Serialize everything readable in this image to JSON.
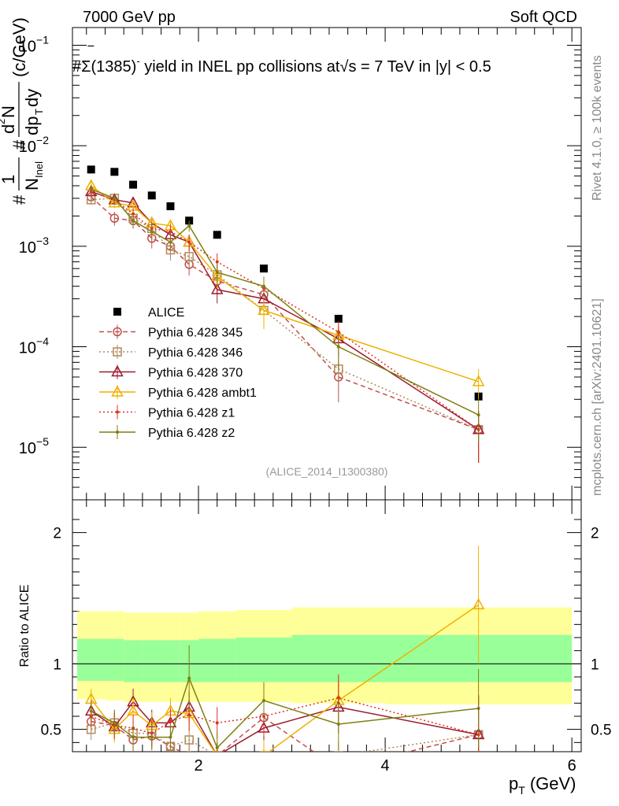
{
  "header": {
    "energy_label": "7000 GeV pp",
    "process_label": "Soft QCD"
  },
  "side_labels": {
    "rivet": "Rivet 4.1.0, ≥ 100k events",
    "mcplots": "mcplots.cern.ch [arXiv:2401.10621]"
  },
  "colors": {
    "alice": "#000000",
    "p345": "#c0504d",
    "p346": "#b08a5a",
    "p370": "#9b1b30",
    "ambt1": "#f0b000",
    "z1": "#e03020",
    "z2": "#7f7f10",
    "band_outer": "#ffff99",
    "band_inner": "#99ff99"
  },
  "chart_data": [
    {
      "type": "scatter",
      "title": "#Σ(1385)⁻ yield in INEL pp collisions at √s = 7 TeV in |y| < 0.5",
      "title_parts": {
        "hash": "#",
        "sigma": "Σ",
        "bar": "‾",
        "mass": "(1385)",
        "charge": "-",
        "mid": "  yield in INEL pp collisions at",
        "sqrt": "√",
        "tail": "s = 7 TeV in |y| < 0.5"
      },
      "ylabel": "#1/N_inel #d²N/dp_T dy (c/GeV)",
      "ylabel_parts": {
        "hash1": "#",
        "one": "1",
        "N": "N",
        "inel": "Inel",
        "hash2": "#",
        "d": "d",
        "sup2": "2",
        "Ntop": "N",
        "dpT": "dp",
        "T": "T",
        "dy": "dy",
        "unit": "(c/GeV)"
      },
      "yscale": "log",
      "ylim": [
        3e-06,
        0.15
      ],
      "xlim": [
        0.65,
        6.1
      ],
      "yticks": [
        {
          "v": 1e-05,
          "base": "10",
          "exp": "−5"
        },
        {
          "v": 0.0001,
          "base": "10",
          "exp": "−4"
        },
        {
          "v": 0.001,
          "base": "10",
          "exp": "−3"
        },
        {
          "v": 0.01,
          "base": "10",
          "exp": "−2"
        },
        {
          "v": 0.1,
          "base": "10",
          "exp": "−1"
        }
      ],
      "annotation": "(ALICE_2014_I1300380)",
      "legend_position": "lower-left",
      "series": [
        {
          "name": "ALICE",
          "key": "alice",
          "marker": "square-filled",
          "line": "none",
          "x": [
            0.85,
            1.1,
            1.3,
            1.5,
            1.7,
            1.9,
            2.2,
            2.7,
            3.5,
            5.0
          ],
          "y": [
            0.0058,
            0.0055,
            0.0041,
            0.0032,
            0.0025,
            0.0018,
            0.0013,
            0.0006,
            0.00019,
            3.2e-05
          ]
        },
        {
          "name": "Pythia 6.428 345",
          "key": "p345",
          "marker": "circle-open",
          "line": "dashed",
          "x": [
            0.85,
            1.1,
            1.3,
            1.5,
            1.7,
            1.9,
            2.2,
            2.7,
            3.5,
            5.0
          ],
          "y": [
            0.0031,
            0.0019,
            0.0018,
            0.0012,
            0.001,
            0.00066,
            0.00045,
            0.00033,
            5e-05,
            1.5e-05
          ],
          "err": [
            0.0003,
            0.0003,
            0.0003,
            0.00025,
            0.0002,
            0.00015,
            0.00012,
            0.0001,
            2.2e-05,
            8e-06
          ]
        },
        {
          "name": "Pythia 6.428 346",
          "key": "p346",
          "marker": "square-open",
          "line": "dotted",
          "x": [
            0.85,
            1.1,
            1.3,
            1.5,
            1.7,
            1.9,
            2.2,
            2.7,
            3.5,
            5.0
          ],
          "y": [
            0.0029,
            0.003,
            0.0019,
            0.0015,
            0.00092,
            0.00079,
            0.00052,
            0.00023,
            6e-05,
            1.5e-05
          ],
          "err": [
            0.0003,
            0.0003,
            0.0003,
            0.00025,
            0.0002,
            0.00015,
            0.00012,
            8e-05,
            2e-05,
            8e-06
          ]
        },
        {
          "name": "Pythia 6.428 370",
          "key": "p370",
          "marker": "triangle-open",
          "line": "solid",
          "x": [
            0.85,
            1.1,
            1.3,
            1.5,
            1.7,
            1.9,
            2.2,
            2.7,
            3.5,
            5.0
          ],
          "y": [
            0.0035,
            0.0029,
            0.0027,
            0.0017,
            0.0013,
            0.0011,
            0.00037,
            0.0003,
            0.00012,
            1.5e-05
          ],
          "err": [
            0.0004,
            0.0003,
            0.0003,
            0.00025,
            0.00025,
            0.0002,
            0.0001,
            0.0001,
            4e-05,
            8e-06
          ]
        },
        {
          "name": "Pythia 6.428 ambt1",
          "key": "ambt1",
          "marker": "triangle-open",
          "line": "solid",
          "x": [
            0.85,
            1.1,
            1.3,
            1.5,
            1.7,
            1.9,
            2.2,
            2.7,
            3.5,
            5.0
          ],
          "y": [
            0.004,
            0.0027,
            0.0025,
            0.0017,
            0.0016,
            0.0011,
            0.0005,
            0.00023,
            0.00013,
            4.5e-05
          ],
          "err": [
            0.0004,
            0.0003,
            0.0003,
            0.00025,
            0.00025,
            0.0002,
            0.00012,
            8e-05,
            4e-05,
            1.5e-05
          ]
        },
        {
          "name": "Pythia 6.428 z1",
          "key": "z1",
          "marker": "dot",
          "line": "dotted",
          "x": [
            0.85,
            1.1,
            1.3,
            1.5,
            1.7,
            1.9,
            2.2,
            2.7,
            3.5,
            5.0
          ],
          "y": [
            0.0035,
            0.0029,
            0.0021,
            0.0015,
            0.0014,
            0.0011,
            0.0007,
            0.00038,
            0.00014,
            1.5e-05
          ],
          "err": [
            0.0004,
            0.0003,
            0.0003,
            0.00025,
            0.00025,
            0.0002,
            0.00015,
            0.0001,
            4e-05,
            8e-06
          ]
        },
        {
          "name": "Pythia 6.428 z2",
          "key": "z2",
          "marker": "dot",
          "line": "solid",
          "x": [
            0.85,
            1.1,
            1.3,
            1.5,
            1.7,
            1.9,
            2.2,
            2.7,
            3.5,
            5.0
          ],
          "y": [
            0.0037,
            0.003,
            0.0018,
            0.0014,
            0.0011,
            0.0016,
            0.00055,
            0.0004,
            0.0001,
            2.1e-05
          ],
          "err": [
            0.0004,
            0.0003,
            0.0003,
            0.00025,
            0.0002,
            0.0002,
            0.00012,
            0.0001,
            4e-05,
            1e-05
          ]
        }
      ]
    },
    {
      "type": "line",
      "ylabel": "Ratio to ALICE",
      "xlabel": "p_T (GeV)",
      "xlabel_parts": {
        "p": "p",
        "T": "T",
        "unit": "(GeV)"
      },
      "ylim": [
        0.33,
        2.25
      ],
      "xlim": [
        0.65,
        6.1
      ],
      "xticks": [
        2,
        4,
        6
      ],
      "yticks": [
        0.5,
        1,
        2
      ],
      "reference_line": 1,
      "bands": {
        "bin_edges": [
          0.7,
          1.0,
          1.2,
          1.4,
          1.6,
          1.8,
          2.0,
          2.4,
          3.0,
          4.0,
          6.0
        ],
        "outer_low": [
          0.73,
          0.72,
          0.71,
          0.71,
          0.71,
          0.71,
          0.71,
          0.71,
          0.7,
          0.69
        ],
        "outer_high": [
          1.4,
          1.4,
          1.39,
          1.39,
          1.39,
          1.39,
          1.4,
          1.41,
          1.43,
          1.43
        ],
        "inner_low": [
          0.87,
          0.87,
          0.86,
          0.86,
          0.86,
          0.86,
          0.86,
          0.86,
          0.86,
          0.86
        ],
        "inner_high": [
          1.19,
          1.19,
          1.18,
          1.18,
          1.18,
          1.18,
          1.19,
          1.2,
          1.22,
          1.22
        ]
      },
      "series": [
        {
          "name": "Pythia 6.428 345",
          "key": "p345",
          "marker": "circle-open",
          "line": "dashed",
          "x": [
            0.85,
            1.1,
            1.3,
            1.5,
            1.7,
            1.9,
            2.2,
            2.7,
            3.5,
            5.0
          ],
          "y": [
            0.56,
            0.53,
            0.42,
            0.45,
            0.37,
            0.3,
            0.3,
            0.59,
            0.2,
            0.46
          ],
          "err": [
            0.08,
            0.1,
            0.1,
            0.1,
            0.1,
            0.1,
            0.1,
            0.15,
            0.1,
            0.3
          ]
        },
        {
          "name": "Pythia 6.428 346",
          "key": "p346",
          "marker": "square-open",
          "line": "dotted",
          "x": [
            0.85,
            1.1,
            1.3,
            1.5,
            1.7,
            1.9,
            2.2,
            2.7,
            3.5,
            5.0
          ],
          "y": [
            0.5,
            0.55,
            0.47,
            0.47,
            0.37,
            0.42,
            0.3,
            0.3,
            0.3,
            0.46
          ],
          "err": [
            0.08,
            0.1,
            0.1,
            0.1,
            0.1,
            0.1,
            0.1,
            0.12,
            0.1,
            0.3
          ]
        },
        {
          "name": "Pythia 6.428 370",
          "key": "p370",
          "marker": "triangle-open",
          "line": "solid",
          "x": [
            0.85,
            1.1,
            1.3,
            1.5,
            1.7,
            1.9,
            2.2,
            2.7,
            3.5,
            5.0
          ],
          "y": [
            0.64,
            0.52,
            0.71,
            0.55,
            0.55,
            0.67,
            0.3,
            0.51,
            0.67,
            0.46
          ],
          "err": [
            0.08,
            0.1,
            0.1,
            0.1,
            0.1,
            0.12,
            0.1,
            0.15,
            0.2,
            0.3
          ]
        },
        {
          "name": "Pythia 6.428 ambt1",
          "key": "ambt1",
          "marker": "triangle-open",
          "line": "solid",
          "x": [
            0.85,
            1.1,
            1.3,
            1.5,
            1.7,
            1.9,
            2.2,
            2.7,
            3.5,
            5.0
          ],
          "y": [
            0.73,
            0.5,
            0.64,
            0.53,
            0.64,
            0.62,
            0.3,
            0.3,
            0.72,
            1.45
          ],
          "err": [
            0.08,
            0.1,
            0.1,
            0.1,
            0.1,
            0.12,
            0.1,
            0.12,
            0.18,
            0.45
          ]
        },
        {
          "name": "Pythia 6.428 z1",
          "key": "z1",
          "marker": "dot",
          "line": "dotted",
          "x": [
            0.85,
            1.1,
            1.3,
            1.5,
            1.7,
            1.9,
            2.2,
            2.7,
            3.5,
            5.0
          ],
          "y": [
            0.6,
            0.53,
            0.51,
            0.47,
            0.56,
            0.61,
            0.55,
            0.6,
            0.74,
            0.46
          ],
          "err": [
            0.08,
            0.1,
            0.1,
            0.1,
            0.1,
            0.12,
            0.12,
            0.15,
            0.18,
            0.3
          ]
        },
        {
          "name": "Pythia 6.428 z2",
          "key": "z2",
          "marker": "dot",
          "line": "solid",
          "x": [
            0.85,
            1.1,
            1.3,
            1.5,
            1.7,
            1.9,
            2.2,
            2.7,
            3.5,
            5.0
          ],
          "y": [
            0.64,
            0.55,
            0.44,
            0.44,
            0.44,
            0.89,
            0.36,
            0.72,
            0.54,
            0.66
          ],
          "err": [
            0.08,
            0.1,
            0.1,
            0.1,
            0.1,
            0.25,
            0.12,
            0.14,
            0.2,
            0.3
          ]
        }
      ]
    }
  ]
}
